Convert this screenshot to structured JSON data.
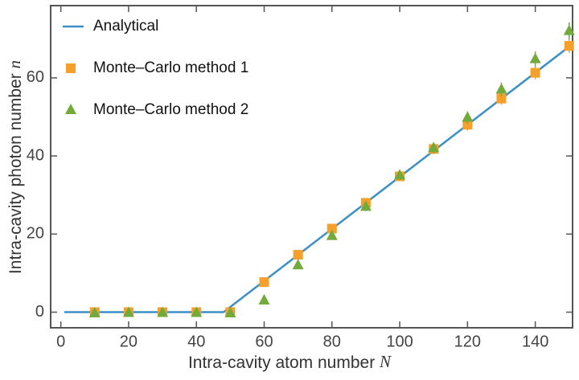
{
  "chart_data": {
    "type": "line",
    "x_label": "Intra-cavity atom number",
    "x_label_symbol": "N",
    "y_label": "Intra-cavity photon number",
    "y_label_symbol": "n",
    "xlim": [
      -3,
      151
    ],
    "ylim": [
      -4,
      78.5
    ],
    "xticks": [
      0,
      20,
      40,
      60,
      80,
      100,
      120,
      140
    ],
    "yticks": [
      0,
      20,
      40,
      60
    ],
    "legend": "upper left",
    "series": [
      {
        "name": "Analytical",
        "color": "#3b8fc5",
        "marker": "line",
        "x": [
          1,
          48,
          150
        ],
        "values": [
          0,
          0,
          68
        ]
      },
      {
        "name": "Monte–Carlo method 1",
        "color": "#f5a02a",
        "marker": "square",
        "x": [
          10,
          20,
          30,
          40,
          50,
          60,
          70,
          80,
          90,
          100,
          110,
          120,
          130,
          140,
          150
        ],
        "values": [
          0,
          0,
          0,
          0,
          0,
          7.7,
          14.7,
          21.4,
          28,
          34.8,
          41.8,
          48,
          54.7,
          61.3,
          68.2
        ],
        "errors": [
          0.3,
          0.3,
          0.3,
          0.3,
          0.3,
          0.6,
          0.8,
          0.9,
          1,
          1.1,
          1.3,
          1.5,
          1.6,
          1.7,
          1.8
        ]
      },
      {
        "name": "Monte–Carlo method 2",
        "color": "#72ab3c",
        "marker": "triangle",
        "x": [
          10,
          20,
          30,
          40,
          50,
          60,
          70,
          80,
          90,
          100,
          110,
          120,
          130,
          140,
          150
        ],
        "values": [
          -0.3,
          -0.2,
          -0.2,
          -0.2,
          -0.3,
          3,
          12,
          19.5,
          27,
          35,
          42,
          49.8,
          57,
          64.8,
          72
        ],
        "errors": [
          0.3,
          0.3,
          0.3,
          0.3,
          0.3,
          0.6,
          0.8,
          1,
          1.1,
          1.2,
          1.4,
          1.6,
          1.8,
          2,
          2.2
        ]
      }
    ]
  }
}
